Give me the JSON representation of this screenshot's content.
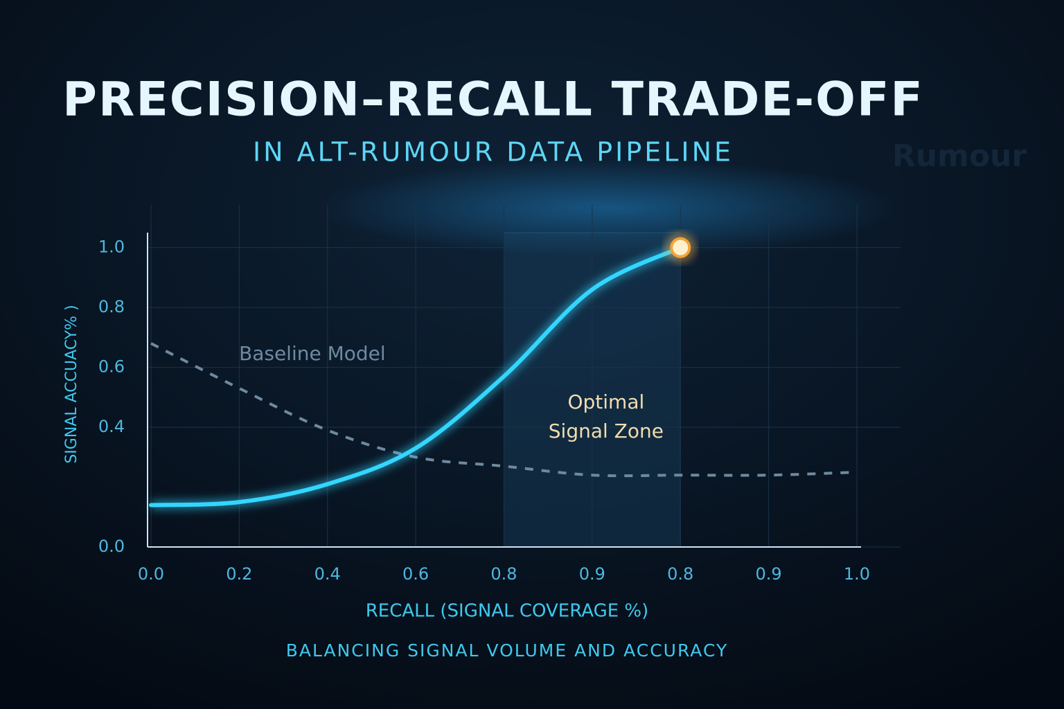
{
  "chart_data": {
    "type": "line",
    "title": "PRECISION–RECALL TRADE-OFF",
    "subtitle": "IN ALT-RUMOUR DATA PIPELINE",
    "x_label": "RECALL (SIGNAL COVERAGE %)",
    "y_label": "SIGNAL ACCUACY% )",
    "caption": "BALANCING SIGNAL VOLUME AND ACCURACY",
    "watermark": "Rumour",
    "categories": [
      "0.0",
      "0.2",
      "0.4",
      "0.6",
      "0.8",
      "0.9",
      "0.8",
      "0.9",
      "1.0"
    ],
    "series": [
      {
        "name": "Baseline Model",
        "color": "#6f8aa0",
        "dashed": true,
        "values": [
          0.68,
          0.53,
          0.39,
          0.3,
          0.27,
          0.24,
          0.24,
          0.24,
          0.25
        ]
      },
      {
        "name": "Optimal Signal Zone",
        "color": "#33d6ff",
        "values": [
          0.14,
          0.15,
          0.21,
          0.33,
          0.57,
          0.86,
          1.0,
          null,
          null
        ]
      }
    ],
    "zone_lines": [
      "Optimal",
      "Signal Zone"
    ],
    "ylim": [
      0,
      1.05
    ],
    "yticks": [
      {
        "value": 1,
        "label": "1.0"
      },
      0.8,
      0.6,
      0.4,
      {
        "value": 0,
        "label": "0.0"
      }
    ],
    "grid": true
  }
}
